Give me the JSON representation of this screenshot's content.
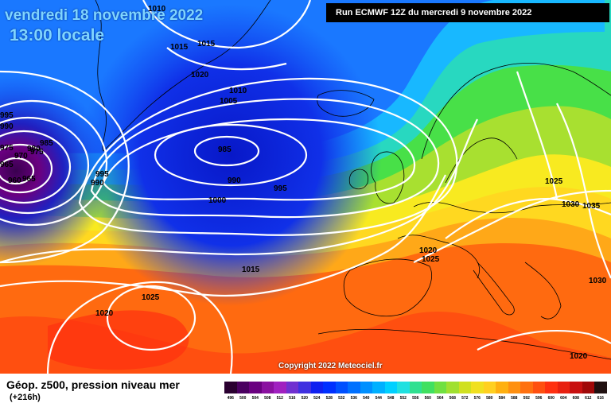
{
  "header": {
    "date_line": "vendredi 18 novembre 2022",
    "time_line": "13:00 locale",
    "run_info": "Run ECMWF 12Z du mercredi 9 novembre 2022"
  },
  "copyright": "Copyright 2022 Meteociel.fr",
  "footer": {
    "parameter": "Géop. z500, pression niveau mer",
    "lead_time": "(+216h)"
  },
  "colors": {
    "low_core": "#5a006a",
    "deep_blue": "#0a23d8",
    "blue": "#1f5cff",
    "cyan": "#1fd0ff",
    "green": "#3ee05a",
    "yellow": "#ffe020",
    "orange": "#ff9a10",
    "red": "#ff3a10"
  },
  "isobar_labels": [
    {
      "text": "1010"
    },
    {
      "text": "1015"
    },
    {
      "text": "1015"
    },
    {
      "text": "1020"
    },
    {
      "text": "1010"
    },
    {
      "text": "1005"
    },
    {
      "text": "985"
    },
    {
      "text": "990"
    },
    {
      "text": "995"
    },
    {
      "text": "1000"
    },
    {
      "text": "995"
    },
    {
      "text": "990"
    },
    {
      "text": "995"
    },
    {
      "text": "990"
    },
    {
      "text": "985"
    },
    {
      "text": "980"
    },
    {
      "text": "975"
    },
    {
      "text": "970"
    },
    {
      "text": "965"
    },
    {
      "text": "960"
    },
    {
      "text": "975"
    },
    {
      "text": "965"
    },
    {
      "text": "1015"
    },
    {
      "text": "1025"
    },
    {
      "text": "1020"
    },
    {
      "text": "1020"
    },
    {
      "text": "1025"
    },
    {
      "text": "1025"
    },
    {
      "text": "1030"
    },
    {
      "text": "1035"
    },
    {
      "text": "1030"
    },
    {
      "text": "1020"
    }
  ],
  "scale": [
    "496",
    "500",
    "504",
    "508",
    "512",
    "516",
    "520",
    "524",
    "528",
    "532",
    "536",
    "540",
    "544",
    "548",
    "552",
    "556",
    "560",
    "564",
    "568",
    "572",
    "576",
    "580",
    "584",
    "588",
    "592",
    "596",
    "600",
    "604",
    "608",
    "612",
    "616"
  ],
  "scale_colors": [
    "#2a0030",
    "#4a0060",
    "#6a0080",
    "#8a10a0",
    "#a020c0",
    "#7030d0",
    "#4030e0",
    "#1020f0",
    "#0030ff",
    "#0050ff",
    "#0070ff",
    "#0090ff",
    "#00b0ff",
    "#00d0ff",
    "#20e0e0",
    "#30e090",
    "#40e060",
    "#70e040",
    "#a0e030",
    "#d0e020",
    "#f0e020",
    "#ffd020",
    "#ffb010",
    "#ff9010",
    "#ff7010",
    "#ff5010",
    "#ff3010",
    "#e82010",
    "#c81010",
    "#a00808",
    "#201010"
  ]
}
